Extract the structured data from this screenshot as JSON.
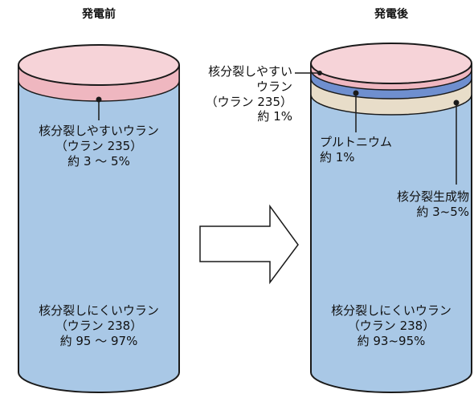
{
  "before": {
    "title": "発電前",
    "fissile": {
      "name": "核分裂しやすいウラン",
      "isotope": "（ウラン 235）",
      "ratio": "約 3 ～ 5%"
    },
    "non_fissile": {
      "name": "核分裂しにくいウラン",
      "isotope": "（ウラン 238）",
      "ratio": "約 95 ～ 97%"
    }
  },
  "after": {
    "title": "発電後",
    "fissile": {
      "name_line1": "核分裂しやすい",
      "name_line2": "ウラン",
      "isotope": "（ウラン 235）",
      "ratio": "約 1%"
    },
    "plutonium": {
      "name": "プルトニウム",
      "ratio": "約 1%"
    },
    "fission_products": {
      "name": "核分裂生成物",
      "ratio": "約 3~5%"
    },
    "non_fissile": {
      "name": "核分裂しにくいウラン",
      "isotope": "（ウラン 238）",
      "ratio": "約 93~95%"
    }
  },
  "colors": {
    "uranium238": "#a9c8e6",
    "uranium235": "#efb7c0",
    "plutonium": "#6f8fcf",
    "fission_products": "#e8ddc9",
    "outline": "#1a1a1a",
    "arrow_fill": "#ffffff"
  }
}
